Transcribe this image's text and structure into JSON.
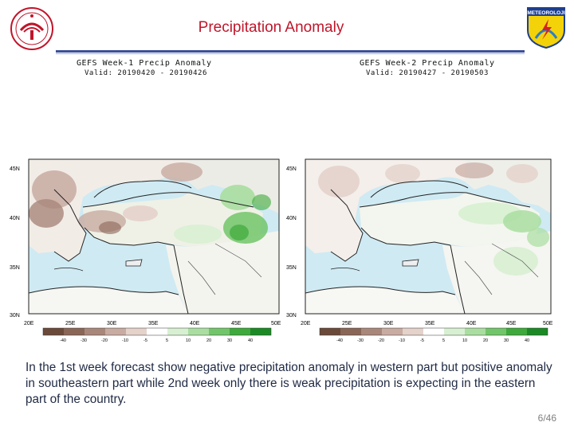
{
  "slide": {
    "title": "Precipitation Anomaly",
    "caption": "In the 1st week forecast show  negative precipitation anomaly in western part but positive anomaly in southeastern part while 2nd week only there is weak precipitation is expecting in the eastern part of the country.",
    "page_number": "6/46"
  },
  "logos": {
    "left": "university-seal",
    "right": "meteorology-emblem",
    "right_text": "METEOROLOJI"
  },
  "maps": [
    {
      "title": "GEFS Week-1 Precip Anomaly",
      "valid": "Valid: 20190420 - 20190426",
      "lat_labels": [
        "45N",
        "40N",
        "35N",
        "30N"
      ],
      "lon_labels": [
        "20E",
        "25E",
        "30E",
        "35E",
        "40E",
        "45E",
        "50E"
      ],
      "scale_labels": [
        "-40",
        "-30",
        "-20",
        "-10",
        "-5",
        "5",
        "10",
        "20",
        "30",
        "40"
      ]
    },
    {
      "title": "GEFS Week-2 Precip Anomaly",
      "valid": "Valid: 20190427 - 20190503",
      "lat_labels": [
        "45N",
        "40N",
        "35N",
        "30N"
      ],
      "lon_labels": [
        "20E",
        "25E",
        "30E",
        "35E",
        "40E",
        "45E",
        "50E"
      ],
      "scale_labels": [
        "-40",
        "-30",
        "-20",
        "-10",
        "-5",
        "5",
        "10",
        "20",
        "30",
        "40"
      ]
    }
  ],
  "colors": {
    "title": "#c0152a",
    "rule": "#3b4f9a",
    "water": "#cfeaf3",
    "scale": [
      "#6b4a3a",
      "#8a6656",
      "#a9877a",
      "#c8aba1",
      "#e4d2cb",
      "#ffffff",
      "#d8f0d2",
      "#a9dea0",
      "#72c66a",
      "#3daa3b",
      "#1b8a25"
    ]
  }
}
